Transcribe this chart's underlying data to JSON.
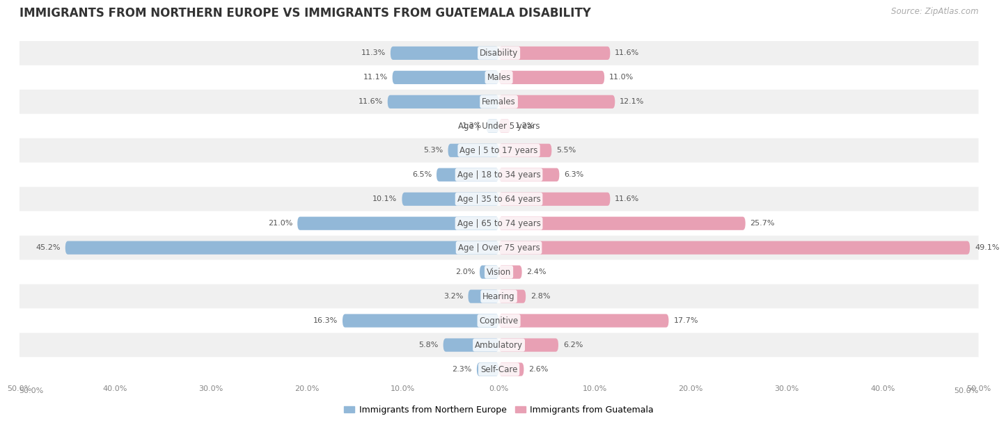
{
  "title": "IMMIGRANTS FROM NORTHERN EUROPE VS IMMIGRANTS FROM GUATEMALA DISABILITY",
  "source": "Source: ZipAtlas.com",
  "categories": [
    "Disability",
    "Males",
    "Females",
    "Age | Under 5 years",
    "Age | 5 to 17 years",
    "Age | 18 to 34 years",
    "Age | 35 to 64 years",
    "Age | 65 to 74 years",
    "Age | Over 75 years",
    "Vision",
    "Hearing",
    "Cognitive",
    "Ambulatory",
    "Self-Care"
  ],
  "left_values": [
    11.3,
    11.1,
    11.6,
    1.3,
    5.3,
    6.5,
    10.1,
    21.0,
    45.2,
    2.0,
    3.2,
    16.3,
    5.8,
    2.3
  ],
  "right_values": [
    11.6,
    11.0,
    12.1,
    1.2,
    5.5,
    6.3,
    11.6,
    25.7,
    49.1,
    2.4,
    2.8,
    17.7,
    6.2,
    2.6
  ],
  "left_color": "#92b8d8",
  "right_color": "#e8a0b4",
  "left_label": "Immigrants from Northern Europe",
  "right_label": "Immigrants from Guatemala",
  "axis_max": 50.0,
  "bar_height": 0.55,
  "background_color": "#ffffff",
  "row_bg_light": "#f0f0f0",
  "row_bg_white": "#ffffff",
  "label_fontsize": 8.5,
  "title_fontsize": 12,
  "value_fontsize": 8.0,
  "source_fontsize": 8.5
}
